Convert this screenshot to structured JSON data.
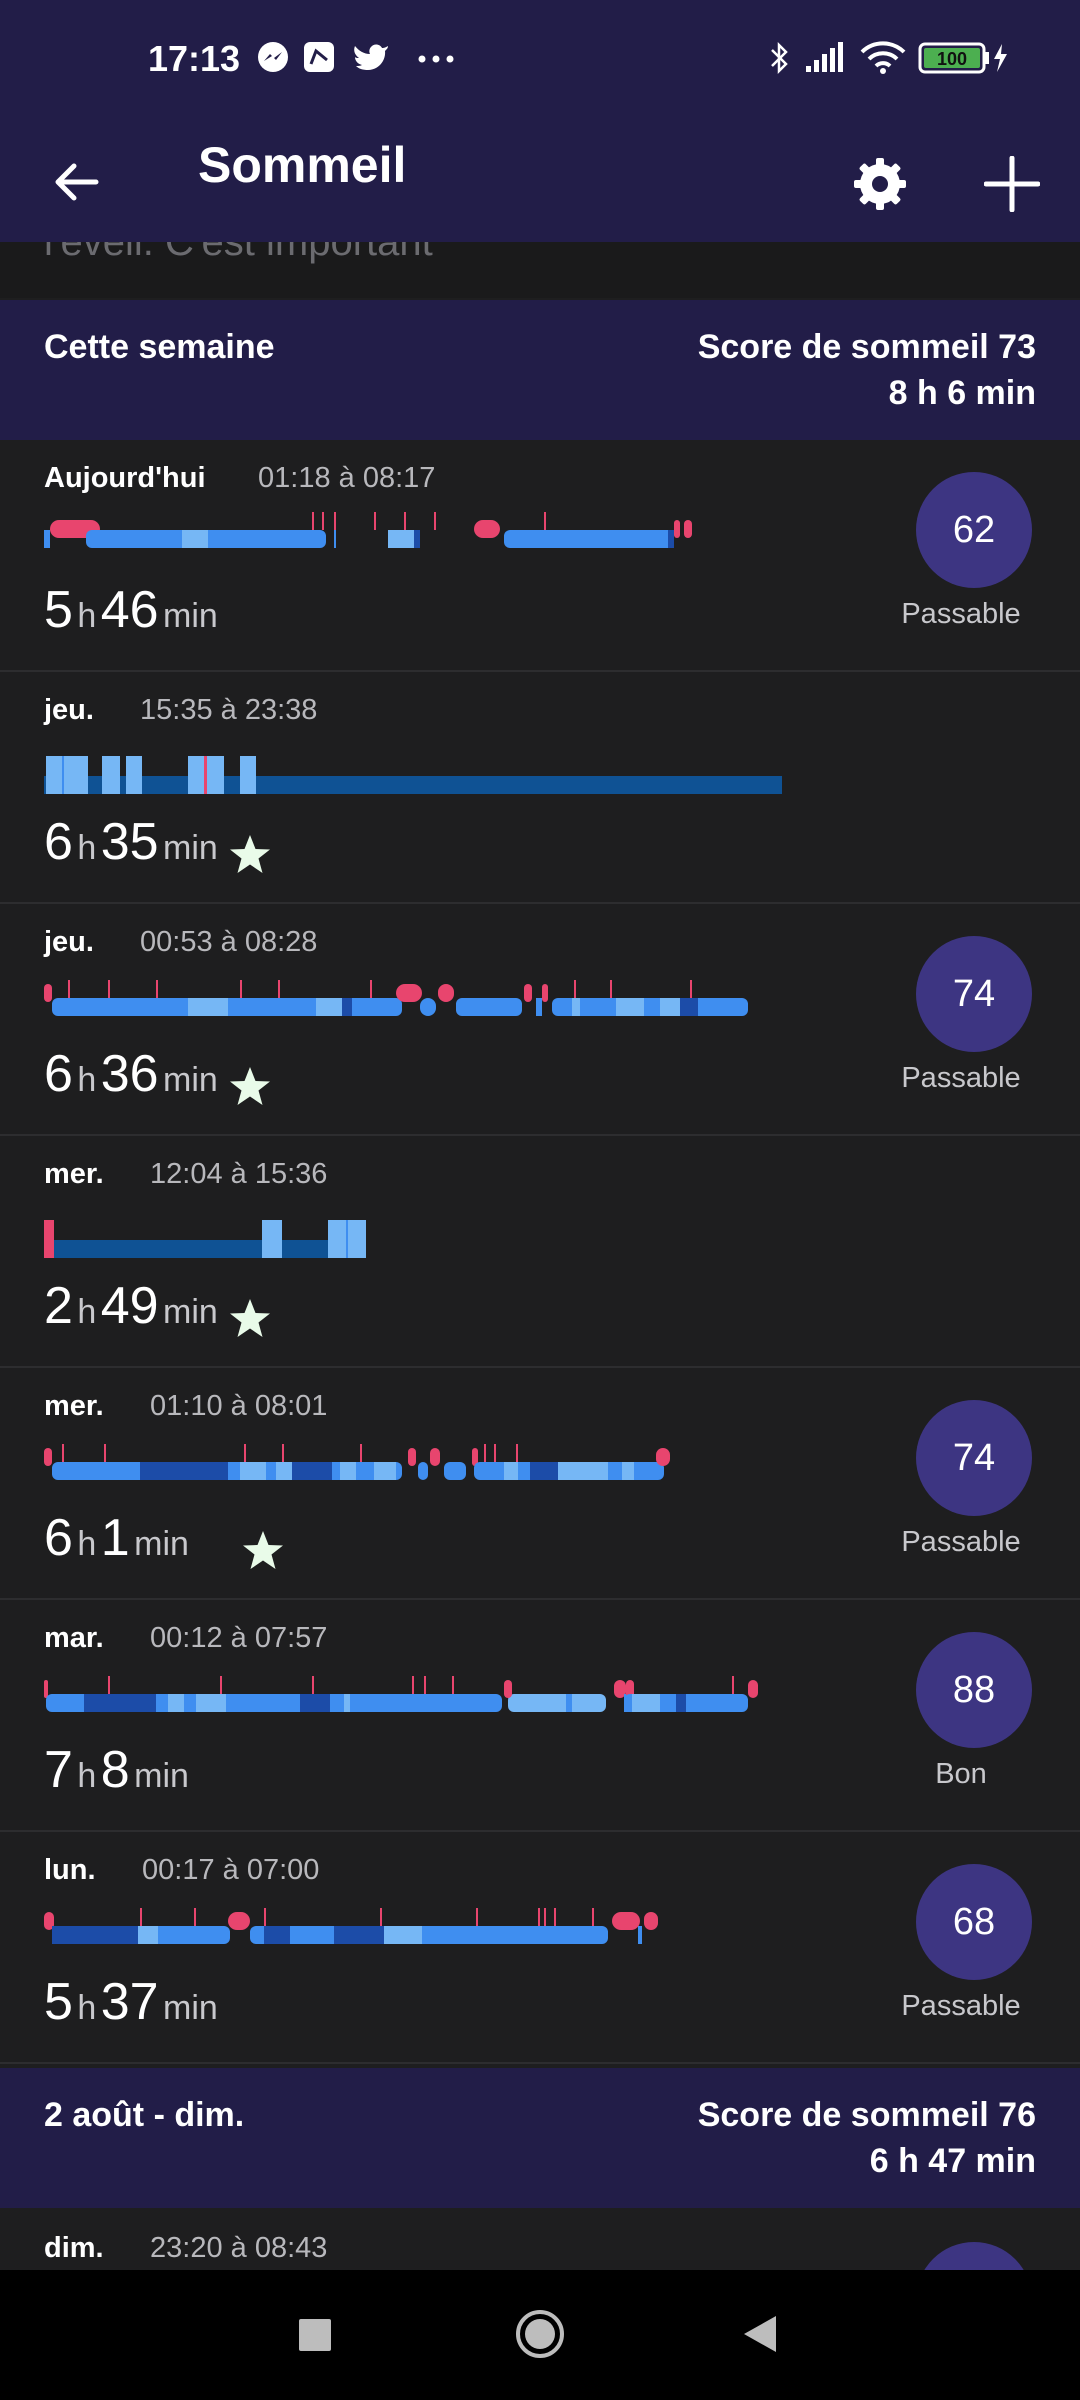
{
  "status_bar": {
    "time": "17:13",
    "battery": "100"
  },
  "app_bar": {
    "title": "Sommeil"
  },
  "peek_text": "l'éveil. C'est important",
  "week_current": {
    "label": "Cette semaine",
    "score": "Score de sommeil 73",
    "duration": "8 h 6 min"
  },
  "week_previous": {
    "label": "2 août - dim.",
    "score": "Score de sommeil 76",
    "duration": "6 h 47 min"
  },
  "units": {
    "h": "h",
    "min": "min"
  },
  "entries": [
    {
      "day": "Aujourd'hui",
      "range": "01:18 à 08:17",
      "hours": "5",
      "minutes": "46",
      "star": false,
      "score": "62",
      "score_label": "Passable"
    },
    {
      "day": "jeu.",
      "range": "15:35 à 23:38",
      "hours": "6",
      "minutes": "35",
      "star": true
    },
    {
      "day": "jeu.",
      "range": "00:53 à 08:28",
      "hours": "6",
      "minutes": "36",
      "star": true,
      "score": "74",
      "score_label": "Passable"
    },
    {
      "day": "mer.",
      "range": "12:04 à 15:36",
      "hours": "2",
      "minutes": "49",
      "star": true
    },
    {
      "day": "mer.",
      "range": "01:10 à 08:01",
      "hours": "6",
      "minutes": "1",
      "star": true,
      "score": "74",
      "score_label": "Passable"
    },
    {
      "day": "mar.",
      "range": "00:12 à 07:57",
      "hours": "7",
      "minutes": "8",
      "star": false,
      "score": "88",
      "score_label": "Bon"
    },
    {
      "day": "lun.",
      "range": "00:17 à 07:00",
      "hours": "5",
      "minutes": "37",
      "star": false,
      "score": "68",
      "score_label": "Passable"
    }
  ],
  "next_entry": {
    "day": "dim.",
    "range": "23:20 à 08:43"
  },
  "colors": {
    "header_bg": "#221d48",
    "awake": "#e8456e",
    "rem": "#76b7f5",
    "light": "#3f8ef0",
    "deep": "#1c4ca8",
    "restless": "#0f5294",
    "score_circle": "#3d3582",
    "star": "#e9fbe9"
  }
}
